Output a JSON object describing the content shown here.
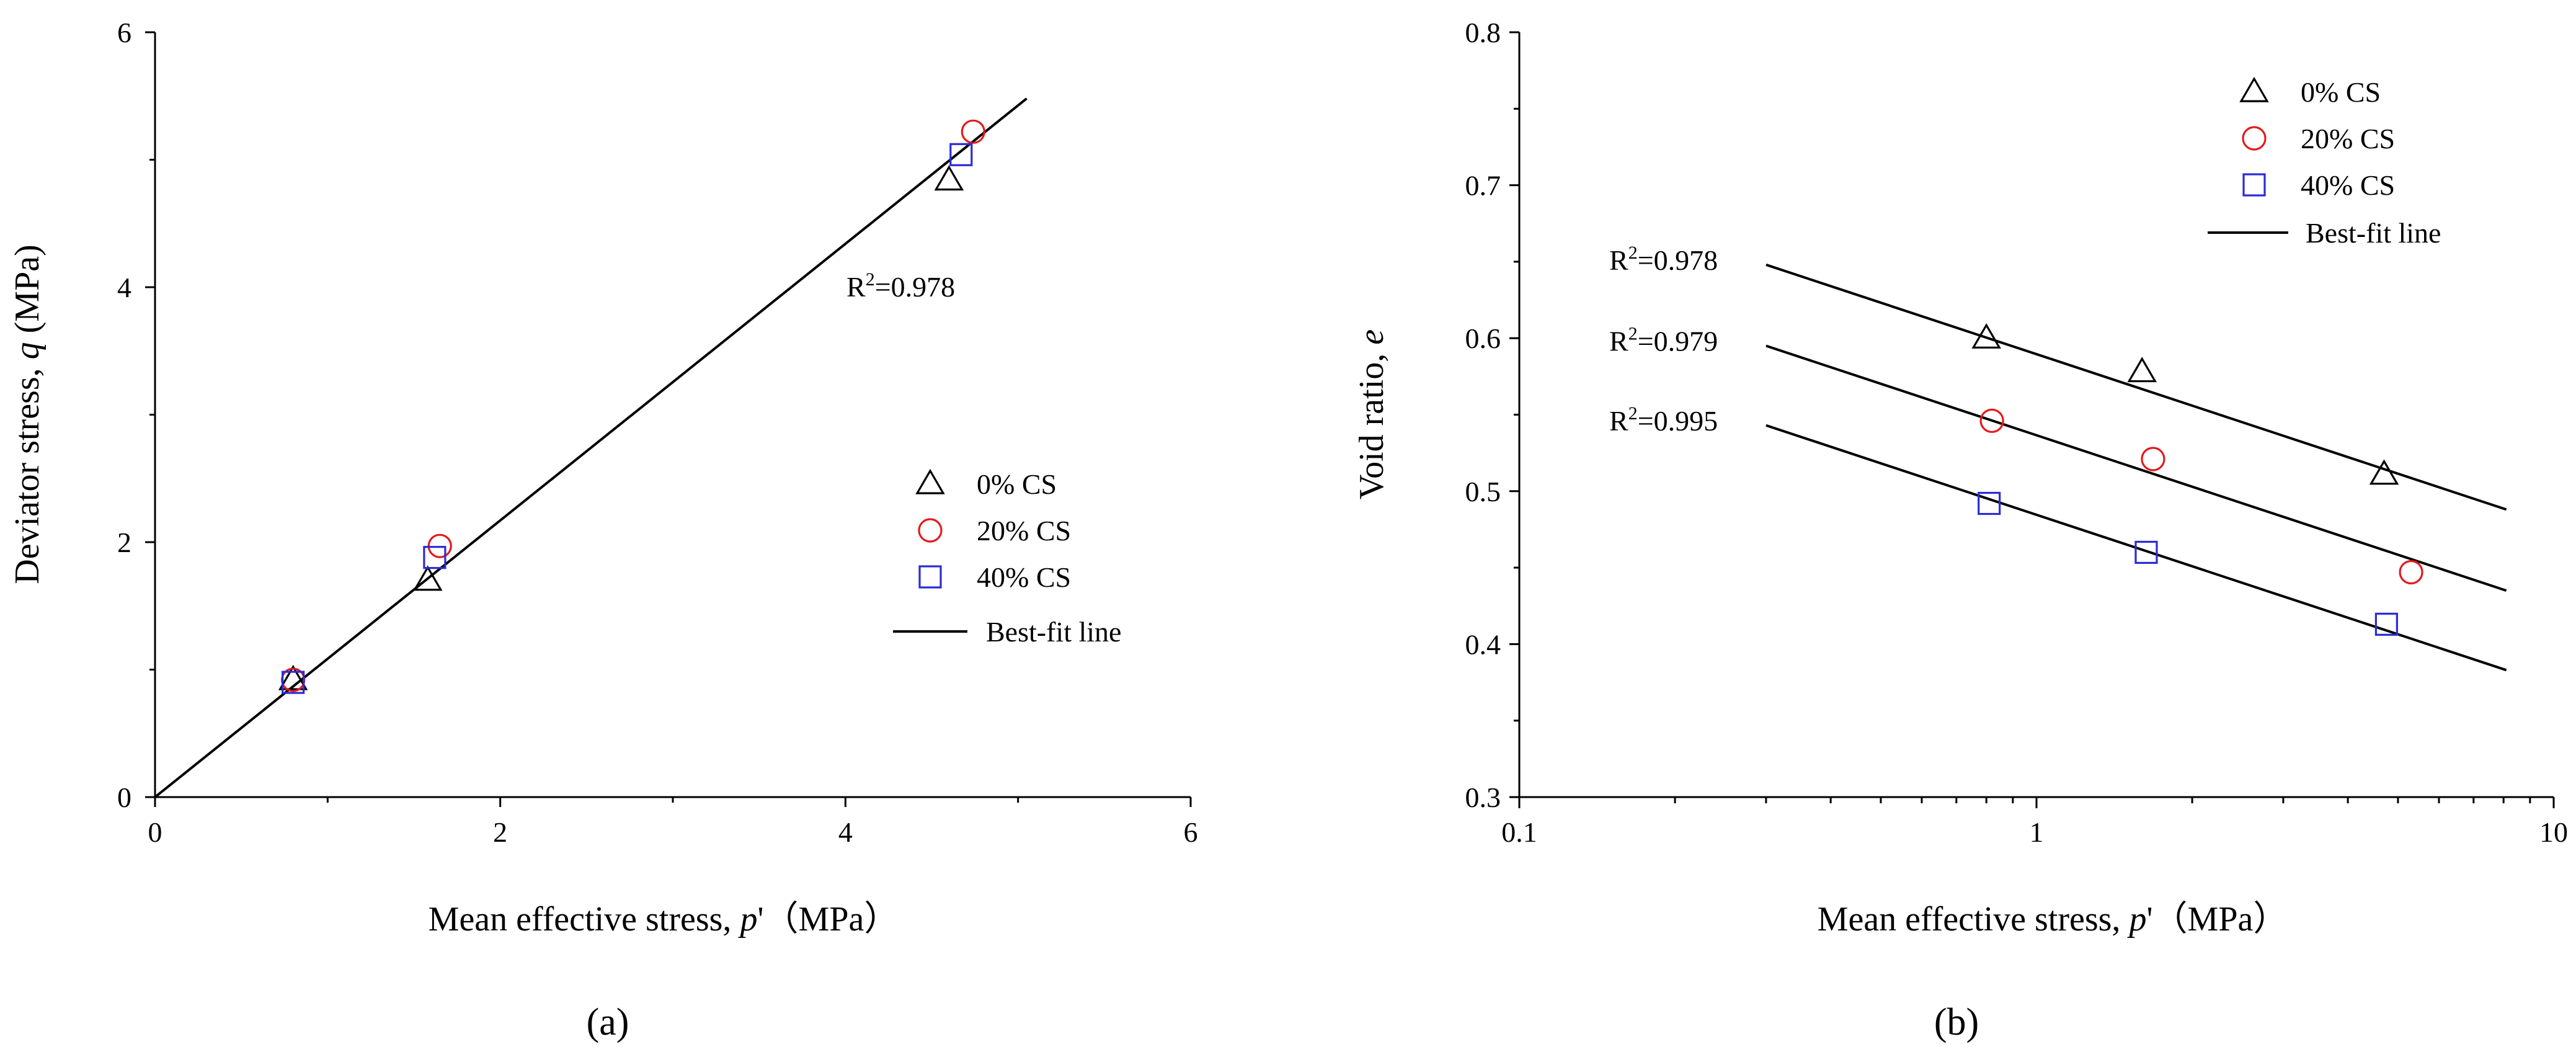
{
  "chart_data": [
    {
      "panel": "a",
      "type": "scatter",
      "xlabel": "Mean effective stress, p'（MPa）",
      "ylabel": "Deviator stress, q (MPa)",
      "xlim": [
        0,
        6
      ],
      "ylim": [
        0,
        6
      ],
      "xticks": [
        "0",
        "2",
        "4",
        "6"
      ],
      "yticks": [
        "0",
        "2",
        "4",
        "6"
      ],
      "series": [
        {
          "name": "0% CS",
          "marker": "triangle",
          "color": "#000000",
          "points": [
            {
              "x": 0.8,
              "y": 0.92
            },
            {
              "x": 1.58,
              "y": 1.7
            },
            {
              "x": 4.6,
              "y": 4.84
            }
          ]
        },
        {
          "name": "20% CS",
          "marker": "circle",
          "color": "#e31a1c",
          "points": [
            {
              "x": 0.8,
              "y": 0.92
            },
            {
              "x": 1.65,
              "y": 1.97
            },
            {
              "x": 4.74,
              "y": 5.22
            }
          ]
        },
        {
          "name": "40% CS",
          "marker": "square",
          "color": "#2b2bd6",
          "points": [
            {
              "x": 0.8,
              "y": 0.9
            },
            {
              "x": 1.62,
              "y": 1.88
            },
            {
              "x": 4.67,
              "y": 5.04
            }
          ]
        }
      ],
      "fit_lines": [
        {
          "x": [
            0,
            5.05
          ],
          "y": [
            0,
            5.48
          ],
          "label": "R²=0.978",
          "r2_base": "R",
          "r2_sup": "2",
          "r2_val": "=0.978"
        }
      ],
      "legend": {
        "position": "right-middle",
        "fit_label": "Best-fit line"
      },
      "panel_label": "(a)"
    },
    {
      "panel": "b",
      "type": "scatter",
      "xscale": "log",
      "xlabel": "Mean effective stress, p'（MPa）",
      "ylabel": "Void ratio, e",
      "xlim": [
        0.1,
        10
      ],
      "ylim": [
        0.3,
        0.8
      ],
      "xticks": [
        "0.1",
        "1",
        "10"
      ],
      "yticks": [
        "0.3",
        "0.4",
        "0.5",
        "0.6",
        "0.7",
        "0.8"
      ],
      "series": [
        {
          "name": "0% CS",
          "marker": "triangle",
          "color": "#000000",
          "points": [
            {
              "x": 0.8,
              "y": 0.6
            },
            {
              "x": 1.6,
              "y": 0.578
            },
            {
              "x": 4.7,
              "y": 0.511
            }
          ]
        },
        {
          "name": "20% CS",
          "marker": "circle",
          "color": "#e31a1c",
          "points": [
            {
              "x": 0.82,
              "y": 0.546
            },
            {
              "x": 1.68,
              "y": 0.521
            },
            {
              "x": 5.3,
              "y": 0.447
            }
          ]
        },
        {
          "name": "40% CS",
          "marker": "square",
          "color": "#2b2bd6",
          "points": [
            {
              "x": 0.81,
              "y": 0.492
            },
            {
              "x": 1.63,
              "y": 0.46
            },
            {
              "x": 4.75,
              "y": 0.413
            }
          ]
        }
      ],
      "fit_lines": [
        {
          "x": [
            0.3,
            8.1
          ],
          "y": [
            0.648,
            0.488
          ],
          "label": "R²=0.978",
          "r2_base": "R",
          "r2_sup": "2",
          "r2_val": "=0.978"
        },
        {
          "x": [
            0.3,
            8.1
          ],
          "y": [
            0.595,
            0.435
          ],
          "label": "R²=0.979",
          "r2_base": "R",
          "r2_sup": "2",
          "r2_val": "=0.979"
        },
        {
          "x": [
            0.3,
            8.1
          ],
          "y": [
            0.543,
            0.383
          ],
          "label": "R²=0.995",
          "r2_base": "R",
          "r2_sup": "2",
          "r2_val": "=0.995"
        }
      ],
      "legend": {
        "position": "top-right",
        "fit_label": "Best-fit line"
      },
      "panel_label": "(b)"
    }
  ]
}
